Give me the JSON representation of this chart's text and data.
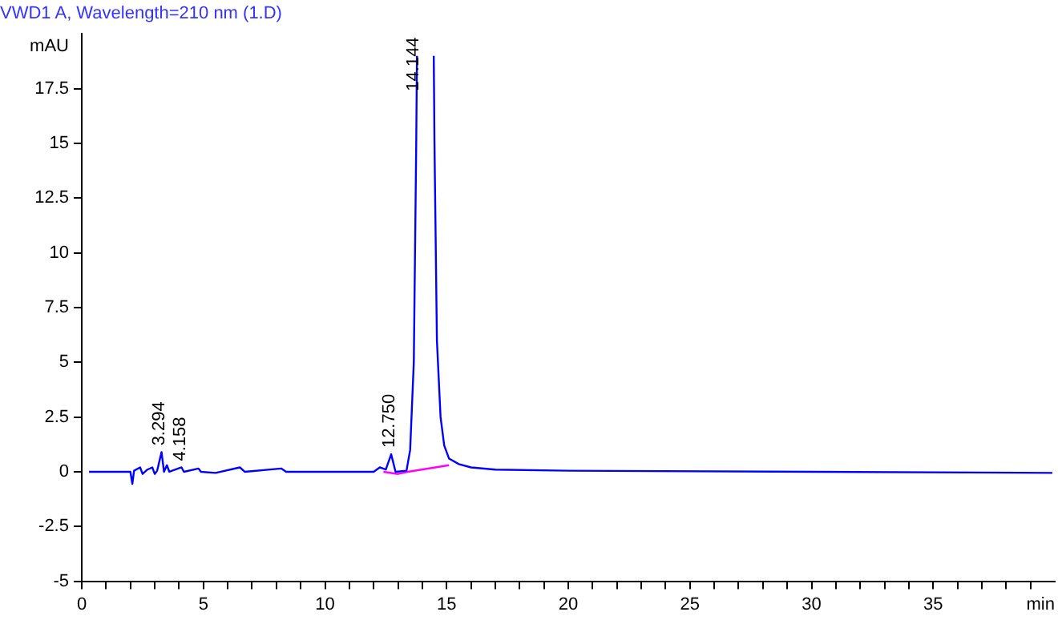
{
  "chart_data": {
    "type": "line",
    "title": "VWD1 A, Wavelength=210 nm (1.D)",
    "xlabel": "min",
    "ylabel": "mAU",
    "xlim": [
      0,
      40
    ],
    "xticks": [
      0,
      {
        "value": 1,
        "label": null
      },
      {
        "value": 2,
        "label": null
      },
      {
        "value": 3,
        "label": null
      },
      {
        "value": 4,
        "label": null
      },
      5,
      {
        "value": 6,
        "label": null
      },
      {
        "value": 7,
        "label": null
      },
      {
        "value": 8,
        "label": null
      },
      {
        "value": 9,
        "label": null
      },
      10,
      {
        "value": 11,
        "label": null
      },
      {
        "value": 12,
        "label": null
      },
      {
        "value": 13,
        "label": null
      },
      {
        "value": 14,
        "label": null
      },
      15,
      {
        "value": 16,
        "label": null
      },
      {
        "value": 17,
        "label": null
      },
      {
        "value": 18,
        "label": null
      },
      {
        "value": 19,
        "label": null
      },
      20,
      {
        "value": 21,
        "label": null
      },
      {
        "value": 22,
        "label": null
      },
      {
        "value": 23,
        "label": null
      },
      {
        "value": 24,
        "label": null
      },
      25,
      {
        "value": 26,
        "label": null
      },
      {
        "value": 27,
        "label": null
      },
      {
        "value": 28,
        "label": null
      },
      {
        "value": 29,
        "label": null
      },
      30,
      {
        "value": 31,
        "label": null
      },
      {
        "value": 32,
        "label": null
      },
      {
        "value": 33,
        "label": null
      },
      {
        "value": 34,
        "label": null
      },
      35,
      {
        "value": 36,
        "label": null
      },
      {
        "value": 37,
        "label": null
      },
      {
        "value": 38,
        "label": null
      },
      {
        "value": 39,
        "label": null
      }
    ],
    "ylim": [
      -5,
      20
    ],
    "yticks": [
      -5,
      -2.5,
      0,
      2.5,
      5,
      7.5,
      10,
      12.5,
      15,
      17.5
    ],
    "grid": false,
    "legend": false,
    "marker": "none",
    "line_style": "solid",
    "series": [
      {
        "color": "#0000ff",
        "x": [
          0.3,
          2.0,
          2.08,
          2.15,
          2.4,
          2.5,
          2.7,
          2.9,
          3.0,
          3.1,
          3.28,
          3.38,
          3.5,
          3.6,
          4.1,
          4.2,
          4.8,
          4.9,
          5.5,
          6.5,
          6.7,
          8.2,
          8.4,
          12.0,
          12.25,
          12.5,
          12.72,
          12.9,
          13.35,
          13.5,
          13.65,
          13.75,
          13.78,
          13.8,
          14.45,
          14.47,
          14.5,
          14.6,
          14.75,
          14.9,
          15.1,
          15.5,
          16,
          17,
          20,
          39.9
        ],
        "values": [
          0,
          0,
          -0.55,
          0.05,
          0.2,
          -0.1,
          0.1,
          0.2,
          -0.1,
          0.05,
          0.9,
          0.0,
          0.3,
          0.0,
          0.2,
          0.0,
          0.15,
          0.0,
          -0.05,
          0.2,
          0.0,
          0.15,
          0.0,
          0.0,
          0.2,
          0.1,
          0.8,
          0.0,
          0.05,
          1,
          5,
          15,
          19,
          null,
          null,
          19,
          15,
          6,
          2.5,
          1.2,
          0.6,
          0.35,
          0.2,
          0.1,
          0.05,
          -0.05
        ]
      },
      {
        "color": "#ff00ff",
        "x": [
          12.4,
          13.0,
          13.4,
          15.1
        ],
        "values": [
          0.0,
          -0.1,
          0.0,
          0.3
        ]
      }
    ],
    "annotations": [
      {
        "text": "3.294",
        "x": 3.294,
        "y": 0.9
      },
      {
        "text": "4.158",
        "x": 4.158,
        "y": 0.2
      },
      {
        "text": "12.750",
        "x": 12.75,
        "y": 0.8
      },
      "14.144"
    ]
  }
}
